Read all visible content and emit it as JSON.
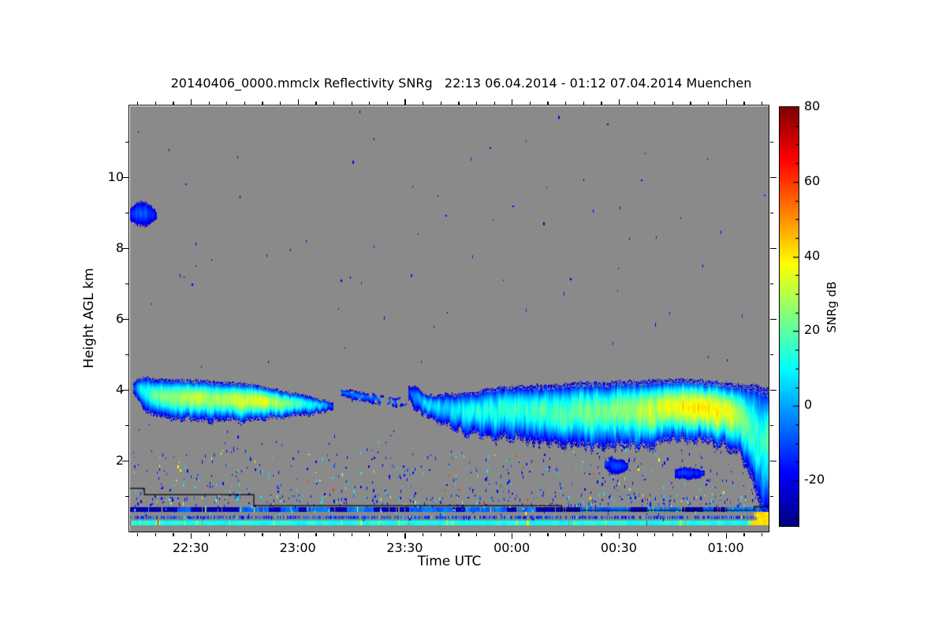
{
  "chart_data": {
    "type": "heatmap",
    "title": "20140406_0000.mmclx Reflectivity SNRg   22:13 06.04.2014 - 01:12 07.04.2014 Muenchen",
    "xlabel": "Time UTC",
    "ylabel": "Height AGL km",
    "x_start": "22:13",
    "x_end": "01:12",
    "duration_min": 179,
    "ylim": [
      0,
      12
    ],
    "y_major_ticks": [
      2,
      4,
      6,
      8,
      10
    ],
    "y_minor_step_km": 1,
    "x_major_ticks": [
      {
        "min": 17,
        "label": "22:30"
      },
      {
        "min": 47,
        "label": "23:00"
      },
      {
        "min": 77,
        "label": "23:30"
      },
      {
        "min": 107,
        "label": "00:00"
      },
      {
        "min": 137,
        "label": "00:30"
      },
      {
        "min": 167,
        "label": "01:00"
      }
    ],
    "x_minor_step_min": 5,
    "colorbar": {
      "label": "SNRg dB",
      "min": -32,
      "max": 80,
      "major_ticks": [
        80,
        60,
        40,
        20,
        0,
        -20
      ],
      "minor_step": 5,
      "colormap": "jet"
    },
    "background_nodata": "#8a8a8a",
    "clouds": [
      {
        "name": "altocumulus-blob-9km",
        "top_noise": 0.12,
        "bot_noise": 0.12,
        "streak": 10,
        "samples": [
          [
            0,
            9.1,
            8.75,
            -17
          ],
          [
            2,
            9.3,
            8.6,
            -9
          ],
          [
            4.5,
            9.3,
            8.6,
            -10
          ],
          [
            6.5,
            9.1,
            8.75,
            -15
          ],
          [
            7.5,
            9.0,
            8.85,
            -19
          ]
        ]
      },
      {
        "name": "cloud-layer-1",
        "top_noise": 0.12,
        "bot_noise": 0.28,
        "streak": 16,
        "samples": [
          [
            0.7,
            4.15,
            3.95,
            -12
          ],
          [
            2,
            4.3,
            3.7,
            2
          ],
          [
            4,
            4.35,
            3.45,
            12
          ],
          [
            7,
            4.3,
            3.25,
            20
          ],
          [
            12,
            4.3,
            3.15,
            27
          ],
          [
            18,
            4.28,
            3.12,
            31
          ],
          [
            24,
            4.22,
            3.1,
            29
          ],
          [
            30,
            4.2,
            3.1,
            33
          ],
          [
            36,
            4.12,
            3.15,
            34
          ],
          [
            41,
            4.0,
            3.2,
            29
          ],
          [
            46,
            3.9,
            3.25,
            20
          ],
          [
            50,
            3.82,
            3.3,
            12
          ],
          [
            54,
            3.72,
            3.38,
            2
          ],
          [
            57,
            3.62,
            3.45,
            -14
          ]
        ]
      },
      {
        "name": "cloud-fragments",
        "frag": 0.45,
        "top_noise": 0.1,
        "bot_noise": 0.12,
        "streak": 10,
        "samples": [
          [
            59,
            4.02,
            3.82,
            -8
          ],
          [
            63,
            3.98,
            3.7,
            -4
          ],
          [
            67,
            3.9,
            3.62,
            -8
          ],
          [
            71,
            3.82,
            3.55,
            -6
          ],
          [
            75,
            3.76,
            3.5,
            -10
          ],
          [
            77.5,
            3.8,
            3.55,
            -8
          ]
        ]
      },
      {
        "name": "cloud-layer-2",
        "top_noise": 0.15,
        "bot_noise": 0.5,
        "streak": 20,
        "samples": [
          [
            78,
            4.1,
            3.8,
            -10
          ],
          [
            80,
            4.08,
            3.45,
            -2
          ],
          [
            83,
            3.88,
            3.25,
            4
          ],
          [
            87,
            3.85,
            3.05,
            7
          ],
          [
            92,
            3.9,
            2.85,
            9
          ],
          [
            97,
            3.95,
            2.7,
            11
          ],
          [
            102,
            4.05,
            2.62,
            13
          ],
          [
            108,
            4.1,
            2.55,
            15
          ],
          [
            114,
            4.12,
            2.5,
            17
          ],
          [
            120,
            4.15,
            2.42,
            19
          ],
          [
            126,
            4.2,
            2.35,
            21
          ],
          [
            132,
            4.2,
            2.28,
            23
          ],
          [
            138,
            4.25,
            2.42,
            26
          ],
          [
            144,
            4.25,
            2.32,
            30
          ],
          [
            150,
            4.3,
            2.48,
            34
          ],
          [
            156,
            4.3,
            2.6,
            40
          ],
          [
            162,
            4.26,
            2.5,
            41
          ],
          [
            167,
            4.2,
            2.35,
            37
          ],
          [
            171,
            4.16,
            2.15,
            28
          ],
          [
            173.5,
            4.14,
            1.5,
            18
          ],
          [
            176,
            4.1,
            0.8,
            15
          ],
          [
            179,
            4.06,
            0.35,
            17
          ]
        ]
      },
      {
        "name": "virga-blob-1",
        "frag": 0.25,
        "top_noise": 0.1,
        "bot_noise": 0.15,
        "streak": 10,
        "samples": [
          [
            133,
            2.1,
            1.8,
            -14
          ],
          [
            135.5,
            2.08,
            1.58,
            -11
          ],
          [
            138,
            2.02,
            1.65,
            -13
          ],
          [
            139.5,
            1.95,
            1.75,
            -16
          ]
        ]
      },
      {
        "name": "virga-blob-2",
        "frag": 0.2,
        "top_noise": 0.1,
        "bot_noise": 0.12,
        "streak": 10,
        "samples": [
          [
            152.5,
            1.78,
            1.52,
            -14
          ],
          [
            156,
            1.82,
            1.46,
            -11
          ],
          [
            159,
            1.76,
            1.5,
            -13
          ],
          [
            161,
            1.7,
            1.55,
            -16
          ]
        ]
      }
    ],
    "stripes": [
      {
        "name": "plate-boundary-blue",
        "h_top": 0.68,
        "h_bot": 0.57,
        "base": -6,
        "dark": -26,
        "blocky": true,
        "vary": 8,
        "gap_prob": 0.05,
        "specks": [
          [
            38,
            0.012
          ]
        ],
        "seed": 11
      },
      {
        "name": "mid-stripe",
        "h_top": 0.455,
        "h_bot": 0.37,
        "base": -12,
        "blocky": false,
        "vary": 10,
        "gap_prob": 0.45,
        "specks": [
          [
            8,
            0.04
          ],
          [
            38,
            0.015
          ]
        ],
        "seed": 22
      },
      {
        "name": "near-surface-cyan",
        "h_top": 0.322,
        "h_bot": 0.2,
        "base": 12,
        "blocky": false,
        "vary": 6,
        "gap_prob": 0.0,
        "specks": [
          [
            38,
            0.02
          ],
          [
            52,
            0.008
          ],
          [
            66,
            0.004
          ]
        ],
        "right_end_value": 42,
        "seed": 33
      }
    ],
    "speckle_regions": [
      {
        "t0": 0,
        "t1": 179,
        "h0": 4.6,
        "h1": 11.9,
        "count": 70,
        "palette": [
          [
            -20,
            0.7
          ],
          [
            -14,
            0.3
          ]
        ],
        "seed": 1
      },
      {
        "t0": 0,
        "t1": 179,
        "h0": 1.05,
        "h1": 2.3,
        "count": 380,
        "palette": [
          [
            -18,
            0.55
          ],
          [
            -8,
            0.15
          ],
          [
            8,
            0.15
          ],
          [
            24,
            0.07
          ],
          [
            38,
            0.05
          ],
          [
            60,
            0.03
          ]
        ],
        "seed": 2
      },
      {
        "t0": 0,
        "t1": 179,
        "h0": 0.72,
        "h1": 1.05,
        "count": 300,
        "palette": [
          [
            -18,
            0.5
          ],
          [
            -8,
            0.2
          ],
          [
            8,
            0.15
          ],
          [
            24,
            0.08
          ],
          [
            38,
            0.05
          ],
          [
            62,
            0.02
          ]
        ],
        "seed": 3
      },
      {
        "t0": 0,
        "t1": 85,
        "h0": 2.3,
        "h1": 3.1,
        "count": 18,
        "palette": [
          [
            -18,
            0.8
          ],
          [
            8,
            0.2
          ]
        ],
        "seed": 4
      },
      {
        "t0": 0,
        "t1": 179,
        "h0": 0.35,
        "h1": 0.72,
        "count": 80,
        "palette": [
          [
            -18,
            0.45
          ],
          [
            8,
            0.3
          ],
          [
            24,
            0.12
          ],
          [
            38,
            0.09
          ],
          [
            60,
            0.04
          ]
        ],
        "seed": 5
      }
    ],
    "boundary_line": [
      [
        0,
        1.22
      ],
      [
        4,
        1.22
      ],
      [
        4,
        1.04
      ],
      [
        34.7,
        1.04
      ],
      [
        34.7,
        0.73
      ],
      [
        121,
        0.73
      ],
      [
        121,
        0.6
      ],
      [
        175,
        0.6
      ],
      [
        175,
        0.71
      ],
      [
        179,
        0.71
      ]
    ],
    "bottom_right_blob": {
      "t0": 175,
      "t1": 179,
      "h0": 0.18,
      "h1": 0.55,
      "value": 42
    }
  },
  "layout_colors": {
    "frame": "#000000",
    "text": "#000000",
    "page_bg": "#ffffff"
  }
}
